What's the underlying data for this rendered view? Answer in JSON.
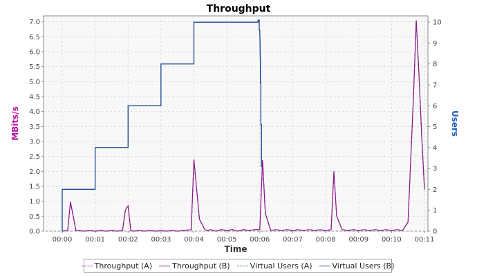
{
  "chart_data": {
    "type": "line",
    "title": "Throughput",
    "xlabel": "Time",
    "ylabel_left": "MBits/s",
    "ylabel_right": "Users",
    "x_ticks": [
      "00:00",
      "00:01",
      "00:02",
      "00:03",
      "00:04",
      "00:05",
      "00:06",
      "00:07",
      "00:08",
      "00:09",
      "00:10",
      "00:11"
    ],
    "x_range_seconds": [
      0,
      660
    ],
    "y_left_range": [
      0,
      7.2
    ],
    "y_left_ticks": [
      "0.0",
      "0.5",
      "1.0",
      "1.5",
      "2.0",
      "2.5",
      "3.0",
      "3.5",
      "4.0",
      "4.5",
      "5.0",
      "5.5",
      "6.0",
      "6.5",
      "7.0"
    ],
    "y_right_range": [
      0,
      10.3
    ],
    "y_right_ticks": [
      "0",
      "1",
      "2",
      "3",
      "4",
      "5",
      "6",
      "7",
      "8",
      "9",
      "10"
    ],
    "grid": true,
    "legend_position": "bottom",
    "series": [
      {
        "name": "Throughput (A)",
        "axis": "left",
        "color": "#a01fa0",
        "dash": true,
        "x": [
          0,
          10,
          15,
          20,
          25,
          30,
          40,
          50,
          60,
          70,
          80,
          90,
          100,
          110,
          115,
          120,
          125,
          130,
          140,
          150,
          160,
          170,
          180,
          190,
          200,
          210,
          220,
          235,
          240,
          250,
          260,
          265,
          270,
          280,
          290,
          300,
          310,
          320,
          330,
          340,
          350,
          360,
          365,
          370,
          380,
          390,
          400,
          410,
          420,
          430,
          440,
          450,
          460,
          470,
          480,
          490,
          495,
          500,
          510,
          520,
          530,
          540,
          550,
          560,
          570,
          580,
          590,
          600,
          610,
          620,
          630,
          640,
          645,
          650,
          655,
          660
        ],
        "y": [
          0,
          0.02,
          0.98,
          0.5,
          0.02,
          0.02,
          0.0,
          0.02,
          0.0,
          0.02,
          0.0,
          0.02,
          0.0,
          0.02,
          0.7,
          0.85,
          0.02,
          0.0,
          0.02,
          0.0,
          0.02,
          0.0,
          0.02,
          0.0,
          0.02,
          0.0,
          0.02,
          0.05,
          2.4,
          0.4,
          0.05,
          0.02,
          0.05,
          0.0,
          0.05,
          0.02,
          0.05,
          0.0,
          0.05,
          0.02,
          0.05,
          0.05,
          2.38,
          0.6,
          0.02,
          0.05,
          0.02,
          0.05,
          0.02,
          0.05,
          0.02,
          0.05,
          0.02,
          0.05,
          0.02,
          0.05,
          2.0,
          0.5,
          0.05,
          0.02,
          0.05,
          0.02,
          0.05,
          0.02,
          0.05,
          0.02,
          0.05,
          0.02,
          0.05,
          0.02,
          0.3,
          4.5,
          7.05,
          5.2,
          3.2,
          1.4
        ]
      },
      {
        "name": "Throughput (B)",
        "axis": "left",
        "color": "#8a1a8a",
        "dash": false,
        "x": [
          0,
          10,
          15,
          20,
          25,
          30,
          40,
          50,
          60,
          70,
          80,
          90,
          100,
          110,
          115,
          120,
          125,
          130,
          140,
          150,
          160,
          170,
          180,
          190,
          200,
          210,
          220,
          235,
          240,
          250,
          260,
          265,
          270,
          280,
          290,
          300,
          310,
          320,
          330,
          340,
          350,
          360,
          365,
          370,
          380,
          390,
          400,
          410,
          420,
          430,
          440,
          450,
          460,
          470,
          480,
          490,
          495,
          500,
          510,
          520,
          530,
          540,
          550,
          560,
          570,
          580,
          590,
          600,
          610,
          620,
          630,
          640,
          645,
          650,
          655,
          660
        ],
        "y": [
          0,
          0.02,
          0.98,
          0.5,
          0.02,
          0.02,
          0.0,
          0.02,
          0.0,
          0.02,
          0.0,
          0.02,
          0.0,
          0.02,
          0.7,
          0.85,
          0.02,
          0.0,
          0.02,
          0.0,
          0.02,
          0.0,
          0.02,
          0.0,
          0.02,
          0.0,
          0.02,
          0.05,
          2.4,
          0.4,
          0.05,
          0.02,
          0.05,
          0.0,
          0.05,
          0.02,
          0.05,
          0.0,
          0.05,
          0.02,
          0.05,
          0.05,
          2.38,
          0.6,
          0.02,
          0.05,
          0.02,
          0.05,
          0.02,
          0.05,
          0.02,
          0.05,
          0.02,
          0.05,
          0.02,
          0.05,
          2.0,
          0.5,
          0.05,
          0.02,
          0.05,
          0.02,
          0.05,
          0.02,
          0.05,
          0.02,
          0.05,
          0.02,
          0.05,
          0.02,
          0.3,
          4.5,
          7.05,
          5.2,
          3.2,
          1.4
        ]
      },
      {
        "name": "Virtual Users (A)",
        "axis": "right",
        "color": "#2a7fa8",
        "dash": true,
        "x": [
          0,
          0,
          60,
          60,
          120,
          120,
          180,
          180,
          240,
          240,
          300,
          300,
          357,
          357,
          359,
          359,
          360,
          361,
          361,
          362,
          362,
          363,
          363,
          365
        ],
        "y": [
          0,
          2,
          2,
          4,
          4,
          6,
          6,
          8,
          8,
          10,
          10,
          10,
          10,
          10.1,
          10.1,
          9.6,
          9.6,
          8.1,
          7.1,
          7.1,
          5.1,
          5.1,
          3.1,
          3.1
        ]
      },
      {
        "name": "Virtual Users (B)",
        "axis": "right",
        "color": "#1a3f8f",
        "dash": false,
        "x": [
          0,
          0,
          60,
          60,
          120,
          120,
          180,
          180,
          240,
          240,
          300,
          300,
          357,
          357,
          359,
          359,
          360,
          361,
          361,
          362,
          362,
          363,
          363,
          365
        ],
        "y": [
          0,
          2,
          2,
          4,
          4,
          6,
          6,
          8,
          8,
          10,
          10,
          10,
          10,
          10.1,
          10.1,
          9.6,
          9.6,
          8.1,
          7.1,
          7.1,
          5.1,
          5.1,
          3.1,
          3.1
        ]
      }
    ]
  }
}
